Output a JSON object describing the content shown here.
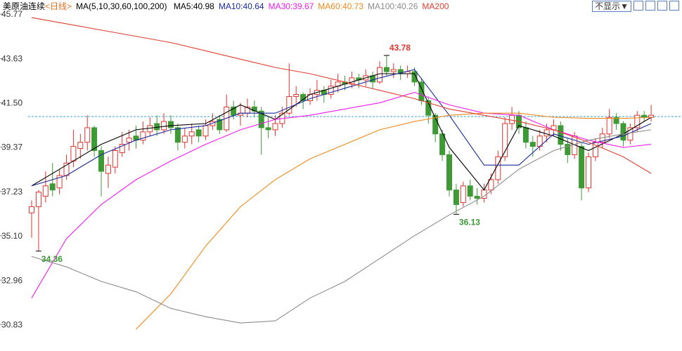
{
  "header": {
    "instrument": "美原油连续",
    "period": "<日线>",
    "ma_params": "MA(5,10,30,60,100,200)",
    "button": "不显示▼"
  },
  "chart_data": {
    "type": "candlestick",
    "ylim": [
      29.55,
      45.84
    ],
    "yticks": [
      45.77,
      43.63,
      {
        "value": 41.5,
        "label": "41.50"
      },
      39.37,
      37.23,
      {
        "value": 35.1,
        "label": "35.10"
      },
      32.96,
      30.83
    ],
    "up_color": "#e0342d",
    "down_color": "#3d9a35",
    "reference_line": 40.84,
    "annotations": [
      43.78,
      36.13,
      34.36
    ],
    "ohlc": [
      [
        36.2,
        36.8,
        35.0,
        36.5
      ],
      [
        36.5,
        37.3,
        34.36,
        37.2
      ],
      [
        37.0,
        38.2,
        36.7,
        37.5
      ],
      [
        37.6,
        38.6,
        37.0,
        37.3
      ],
      [
        37.4,
        38.3,
        37.1,
        38.0
      ],
      [
        38.0,
        39.0,
        37.8,
        38.6
      ],
      [
        38.7,
        40.2,
        38.4,
        39.4
      ],
      [
        39.3,
        40.0,
        38.8,
        39.6
      ],
      [
        39.6,
        40.9,
        39.2,
        40.3
      ],
      [
        40.3,
        40.4,
        38.9,
        39.2
      ],
      [
        39.2,
        39.4,
        37.0,
        38.2
      ],
      [
        38.1,
        38.9,
        37.4,
        38.5
      ],
      [
        38.4,
        39.4,
        38.1,
        39.2
      ],
      [
        39.1,
        40.1,
        38.9,
        39.5
      ],
      [
        39.6,
        40.2,
        39.2,
        39.8
      ],
      [
        39.9,
        40.4,
        39.3,
        39.7
      ],
      [
        39.7,
        40.6,
        39.5,
        40.1
      ],
      [
        40.1,
        40.8,
        39.9,
        40.4
      ],
      [
        40.5,
        40.9,
        39.9,
        40.2
      ],
      [
        40.2,
        41.0,
        40.0,
        40.6
      ],
      [
        40.6,
        40.9,
        40.0,
        40.3
      ],
      [
        40.3,
        40.5,
        39.2,
        39.6
      ],
      [
        39.6,
        40.3,
        39.3,
        39.9
      ],
      [
        39.9,
        40.5,
        39.5,
        40.1
      ],
      [
        40.2,
        40.4,
        39.6,
        39.9
      ],
      [
        39.9,
        40.7,
        39.7,
        40.4
      ],
      [
        40.4,
        41.0,
        40.2,
        40.6
      ],
      [
        40.7,
        40.9,
        40.0,
        40.2
      ],
      [
        40.2,
        41.9,
        40.1,
        41.3
      ],
      [
        41.3,
        41.6,
        40.7,
        40.9
      ],
      [
        40.9,
        41.5,
        40.4,
        41.0
      ],
      [
        41.0,
        41.7,
        40.8,
        41.3
      ],
      [
        41.3,
        41.6,
        40.8,
        41.1
      ],
      [
        41.1,
        41.3,
        39.0,
        40.3
      ],
      [
        40.3,
        40.8,
        39.8,
        40.2
      ],
      [
        40.2,
        40.9,
        39.9,
        40.5
      ],
      [
        40.5,
        41.3,
        40.3,
        41.0
      ],
      [
        41.0,
        43.4,
        40.9,
        41.8
      ],
      [
        41.8,
        42.3,
        41.3,
        41.9
      ],
      [
        41.9,
        42.0,
        41.2,
        41.6
      ],
      [
        41.6,
        42.2,
        41.4,
        41.9
      ],
      [
        41.9,
        42.6,
        41.6,
        42.1
      ],
      [
        42.1,
        42.3,
        41.5,
        41.9
      ],
      [
        41.9,
        42.6,
        41.7,
        42.3
      ],
      [
        42.3,
        42.9,
        42.0,
        42.5
      ],
      [
        42.5,
        42.8,
        42.1,
        42.4
      ],
      [
        42.4,
        43.0,
        42.2,
        42.7
      ],
      [
        42.7,
        42.9,
        42.2,
        42.6
      ],
      [
        42.6,
        43.1,
        42.3,
        42.8
      ],
      [
        42.8,
        43.0,
        42.2,
        42.5
      ],
      [
        42.5,
        43.5,
        42.4,
        43.2
      ],
      [
        43.2,
        43.78,
        42.8,
        43.0
      ],
      [
        43.0,
        43.4,
        42.7,
        43.1
      ],
      [
        43.1,
        43.3,
        42.6,
        42.9
      ],
      [
        42.9,
        43.3,
        42.7,
        43.0
      ],
      [
        43.0,
        43.2,
        42.3,
        42.5
      ],
      [
        42.5,
        42.7,
        41.4,
        41.6
      ],
      [
        41.6,
        41.8,
        40.5,
        40.9
      ],
      [
        40.9,
        41.0,
        39.6,
        40.0
      ],
      [
        40.0,
        40.2,
        38.7,
        39.0
      ],
      [
        39.0,
        39.2,
        37.0,
        37.3
      ],
      [
        37.3,
        37.6,
        36.13,
        36.6
      ],
      [
        36.7,
        37.7,
        36.5,
        37.5
      ],
      [
        37.5,
        37.8,
        36.8,
        37.0
      ],
      [
        37.0,
        37.4,
        36.6,
        36.9
      ],
      [
        36.9,
        37.6,
        36.7,
        37.3
      ],
      [
        37.3,
        38.1,
        37.1,
        37.8
      ],
      [
        37.8,
        39.2,
        37.6,
        38.9
      ],
      [
        38.9,
        40.8,
        38.7,
        40.5
      ],
      [
        40.5,
        41.3,
        40.2,
        40.9
      ],
      [
        40.9,
        41.1,
        40.0,
        40.3
      ],
      [
        40.3,
        40.6,
        39.3,
        39.6
      ],
      [
        39.6,
        39.9,
        38.9,
        39.4
      ],
      [
        39.4,
        40.2,
        39.2,
        39.9
      ],
      [
        39.9,
        40.5,
        39.6,
        40.2
      ],
      [
        40.2,
        40.7,
        39.9,
        40.4
      ],
      [
        40.4,
        40.6,
        39.2,
        39.5
      ],
      [
        39.5,
        39.8,
        38.6,
        39.0
      ],
      [
        39.0,
        40.1,
        38.8,
        39.9
      ],
      [
        39.4,
        39.6,
        36.8,
        37.4
      ],
      [
        37.4,
        39.1,
        37.2,
        38.9
      ],
      [
        38.9,
        39.8,
        38.7,
        39.6
      ],
      [
        39.6,
        40.3,
        39.3,
        40.0
      ],
      [
        40.0,
        41.2,
        39.8,
        40.8
      ],
      [
        40.8,
        41.0,
        40.2,
        40.5
      ],
      [
        40.5,
        40.6,
        39.4,
        39.7
      ],
      [
        39.7,
        40.5,
        39.5,
        40.3
      ],
      [
        40.3,
        41.1,
        40.1,
        40.9
      ],
      [
        40.9,
        41.1,
        40.6,
        40.8
      ],
      [
        40.8,
        41.4,
        40.6,
        40.9
      ]
    ],
    "ma_x": [
      0,
      5,
      10,
      15,
      20,
      25,
      30,
      35,
      40,
      45,
      50,
      55,
      60,
      65,
      70,
      75,
      80,
      85,
      89
    ],
    "series": [
      {
        "name": "MA5:40.98",
        "color": "#000000",
        "values": [
          37.5,
          38.5,
          39.5,
          40.2,
          40.4,
          40.5,
          41.4,
          40.7,
          41.9,
          42.4,
          42.9,
          42.9,
          39.35,
          37.3,
          40.4,
          39.9,
          39.2,
          40.0,
          40.8
        ]
      },
      {
        "name": "MA10:40.64",
        "color": "#1c2aa0",
        "values": [
          37.5,
          38.0,
          39.0,
          39.7,
          40.2,
          40.4,
          41.0,
          41.0,
          41.7,
          42.2,
          42.7,
          43.1,
          40.9,
          38.5,
          38.5,
          40.0,
          39.5,
          39.9,
          40.5
        ]
      },
      {
        "name": "MA30:39.67",
        "color": "#f01cf0",
        "values": [
          32.1,
          34.96,
          36.6,
          37.8,
          38.7,
          39.5,
          40.2,
          40.7,
          40.9,
          41.2,
          41.5,
          42.0,
          41.4,
          41.0,
          40.9,
          40.2,
          39.7,
          39.35,
          39.5
        ]
      },
      {
        "name": "MA60:40.73",
        "color": "#f08a1c",
        "values": [
          null,
          null,
          null,
          30.6,
          32.3,
          34.6,
          36.5,
          37.8,
          38.8,
          39.5,
          40.2,
          40.6,
          40.9,
          41.0,
          41.0,
          40.8,
          40.75,
          40.75,
          40.8
        ]
      },
      {
        "name": "MA100:40.26",
        "color": "#8c8c8c",
        "values": [
          34.1,
          33.6,
          32.9,
          32.4,
          31.6,
          31.2,
          30.9,
          31.0,
          32.1,
          32.9,
          34.0,
          35.1,
          36.1,
          37.0,
          38.3,
          39.2,
          39.7,
          40.0,
          40.2
        ]
      },
      {
        "name": "MA200",
        "color": "#e04030",
        "values": [
          45.6,
          45.3,
          45.0,
          44.7,
          44.4,
          44.0,
          43.6,
          43.2,
          42.9,
          42.5,
          42.1,
          41.7,
          41.2,
          40.9,
          40.6,
          40.2,
          39.6,
          38.9,
          38.1
        ]
      }
    ]
  }
}
